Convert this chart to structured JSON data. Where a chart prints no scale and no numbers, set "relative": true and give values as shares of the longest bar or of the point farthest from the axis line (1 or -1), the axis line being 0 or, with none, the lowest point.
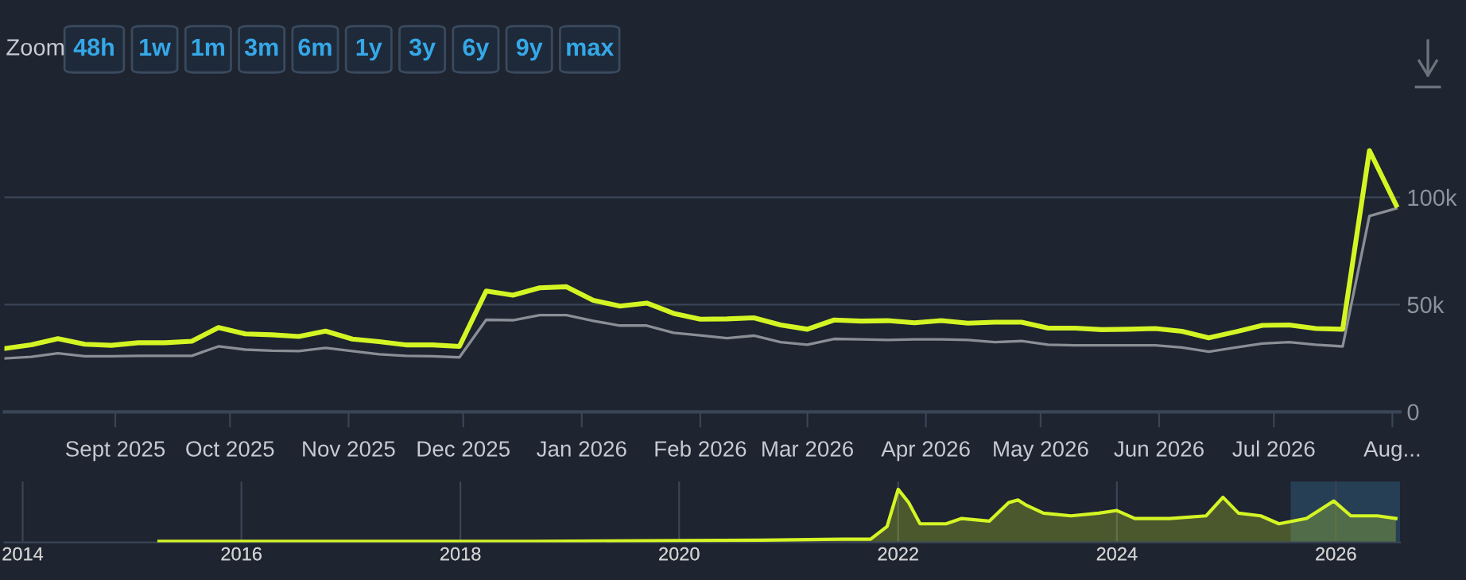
{
  "chart_data": [
    {
      "type": "line",
      "annotations": [
        "Zoom",
        "48h",
        "1w",
        "1m",
        "3m",
        "6m",
        "1y",
        "3y",
        "6y",
        "9y",
        "max"
      ],
      "x": [
        "2025-08-03",
        "2025-08-10",
        "2025-08-17",
        "2025-08-24",
        "2025-08-31",
        "2025-09-07",
        "2025-09-14",
        "2025-09-21",
        "2025-09-28",
        "2025-10-05",
        "2025-10-12",
        "2025-10-19",
        "2025-10-26",
        "2025-11-02",
        "2025-11-09",
        "2025-11-16",
        "2025-11-23",
        "2025-11-30",
        "2025-12-07",
        "2025-12-14",
        "2025-12-21",
        "2025-12-28",
        "2026-01-04",
        "2026-01-11",
        "2026-01-18",
        "2026-01-25",
        "2026-02-01",
        "2026-02-08",
        "2026-02-15",
        "2026-02-22",
        "2026-03-01",
        "2026-03-08",
        "2026-03-15",
        "2026-03-22",
        "2026-03-29",
        "2026-04-05",
        "2026-04-12",
        "2026-04-19",
        "2026-04-26",
        "2026-05-03",
        "2026-05-10",
        "2026-05-17",
        "2026-05-24",
        "2026-05-31",
        "2026-06-07",
        "2026-06-14",
        "2026-06-21",
        "2026-06-28",
        "2026-07-05",
        "2026-07-12",
        "2026-07-19",
        "2026-07-26",
        "2026-08-02"
      ],
      "series": [
        {
          "color": "#8a8f96",
          "values": [
            24900,
            25600,
            27300,
            25900,
            25900,
            26100,
            26100,
            26100,
            30500,
            29000,
            28500,
            28300,
            29800,
            28300,
            26800,
            26100,
            25900,
            25400,
            42900,
            42700,
            45100,
            45100,
            42400,
            40200,
            40200,
            36800,
            35600,
            34300,
            35500,
            32500,
            31300,
            34000,
            33800,
            33500,
            33800,
            33800,
            33500,
            32500,
            33000,
            31300,
            31000,
            31000,
            31000,
            31000,
            30000,
            28000,
            30000,
            31800,
            32500,
            31300,
            30500,
            91300,
            94800
          ]
        },
        {
          "color": "#d4f524",
          "values": [
            29500,
            31200,
            34100,
            31500,
            31000,
            32200,
            32200,
            32900,
            39300,
            36300,
            35900,
            35100,
            37600,
            33900,
            32700,
            31200,
            31200,
            30500,
            56300,
            54400,
            57800,
            58300,
            52000,
            49300,
            50700,
            45900,
            43200,
            43300,
            43800,
            40500,
            38500,
            42800,
            42300,
            42500,
            41500,
            42500,
            41300,
            41800,
            41800,
            39000,
            39000,
            38300,
            38500,
            38800,
            37500,
            34500,
            37300,
            40300,
            40500,
            38800,
            38500,
            121800,
            96300
          ]
        }
      ],
      "xlim": [
        "2025-08-03",
        "2026-08-03"
      ],
      "xticks": [
        {
          "value": "2025-09-01",
          "label": "Sept 2025"
        },
        {
          "value": "2025-10-01",
          "label": "Oct 2025"
        },
        {
          "value": "2025-11-01",
          "label": "Nov 2025"
        },
        {
          "value": "2025-12-01",
          "label": "Dec 2025"
        },
        {
          "value": "2026-01-01",
          "label": "Jan 2026"
        },
        {
          "value": "2026-02-01",
          "label": "Feb 2026"
        },
        {
          "value": "2026-03-01",
          "label": "Mar 2026"
        },
        {
          "value": "2026-04-01",
          "label": "Apr 2026"
        },
        {
          "value": "2026-05-01",
          "label": "May 2026"
        },
        {
          "value": "2026-06-01",
          "label": "Jun 2026"
        },
        {
          "value": "2026-07-01",
          "label": "Jul 2026"
        },
        {
          "value": "2026-08-01",
          "label": "Aug..."
        }
      ],
      "ylim": [
        0,
        192000
      ],
      "yticks": [
        0,
        {
          "value": 50000,
          "label": "50k"
        },
        {
          "value": 100000,
          "label": "100k"
        }
      ],
      "grid": "y",
      "legend": false
    },
    {
      "type": "area",
      "relative": true,
      "x": [
        "2015-04",
        "2018-09",
        "2020-10",
        "2021-07",
        "2021-10",
        "2021-11-25",
        "2022-01-01",
        "2022-02-05",
        "2022-03-15",
        "2022-06-10",
        "2022-08",
        "2022-11",
        "2023-01-05",
        "2023-02-05",
        "2023-03-05",
        "2023-05",
        "2023-08",
        "2023-11",
        "2024-01",
        "2024-03",
        "2024-06-25",
        "2024-10-25",
        "2024-12-20",
        "2025-02-10",
        "2025-04-25",
        "2025-06-25",
        "2025-09-25",
        "2025-12-25",
        "2026-02-20",
        "2026-05-20",
        "2026-07-20"
      ],
      "series": [
        {
          "color": "#d4f524",
          "values": [
            0.02,
            0.02,
            0.04,
            0.06,
            0.06,
            0.3,
            1,
            0.75,
            0.35,
            0.35,
            0.45,
            0.4,
            0.75,
            0.8,
            0.7,
            0.55,
            0.5,
            0.55,
            0.6,
            0.45,
            0.45,
            0.5,
            0.85,
            0.55,
            0.5,
            0.35,
            0.45,
            0.78,
            0.5,
            0.5,
            0.45
          ]
        }
      ],
      "xlim": [
        "2013-11-01",
        "2026-08-03"
      ],
      "xticks": [
        {
          "value": "2014-01-01",
          "label": "2014"
        },
        {
          "value": "2016-01-01",
          "label": "2016"
        },
        {
          "value": "2018-01-01",
          "label": "2018"
        },
        {
          "value": "2020-01-01",
          "label": "2020"
        },
        {
          "value": "2022-01-01",
          "label": "2022"
        },
        {
          "value": "2024-01-01",
          "label": "2024"
        },
        {
          "value": "2026-01-01",
          "label": "2026"
        }
      ],
      "bands": [
        {
          "axis": "x",
          "from": "2025-08-03",
          "to": "2026-08-03",
          "color": "#2e5a78"
        }
      ],
      "grid": "x",
      "legend": false
    }
  ]
}
